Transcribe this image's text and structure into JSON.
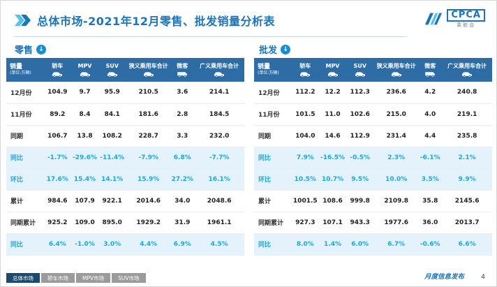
{
  "header": {
    "title_main": "总体市场",
    "title_rest": "-2021年12月零售、批发销量分析表"
  },
  "logo": {
    "brand": "CPCA",
    "name": "乘联会"
  },
  "icons": {
    "down_arrow": "↓"
  },
  "watermark": "乘联会",
  "tables": [
    {
      "section_label": "零售",
      "unit_label": "销量",
      "unit_sub": "(单位:万辆)",
      "columns": [
        {
          "label": "轿车",
          "icon": "car"
        },
        {
          "label": "MPV",
          "icon": "car"
        },
        {
          "label": "SUV",
          "icon": "car"
        },
        {
          "label": "狭义乘用车合计",
          "icon": "car"
        },
        {
          "label": "微客",
          "icon": "van"
        },
        {
          "label": "广义乘用车合计",
          "icon": "car"
        }
      ],
      "rows": [
        {
          "label": "12月份",
          "highlight": false,
          "values": [
            "104.9",
            "9.7",
            "95.9",
            "210.5",
            "3.6",
            "214.1"
          ]
        },
        {
          "label": "11月份",
          "highlight": false,
          "values": [
            "89.2",
            "8.4",
            "84.1",
            "181.6",
            "2.8",
            "184.5"
          ]
        },
        {
          "label": "同期",
          "highlight": false,
          "values": [
            "106.7",
            "13.8",
            "108.2",
            "228.7",
            "3.3",
            "232.0"
          ]
        },
        {
          "label": "同比",
          "highlight": true,
          "values": [
            "-1.7%",
            "-29.6%",
            "-11.4%",
            "-7.9%",
            "6.8%",
            "-7.7%"
          ]
        },
        {
          "label": "环比",
          "highlight": true,
          "values": [
            "17.6%",
            "15.4%",
            "14.1%",
            "15.9%",
            "27.2%",
            "16.1%"
          ]
        },
        {
          "label": "累计",
          "highlight": false,
          "values": [
            "984.6",
            "107.9",
            "922.1",
            "2014.6",
            "34.0",
            "2048.6"
          ]
        },
        {
          "label": "同期累计",
          "highlight": false,
          "values": [
            "925.2",
            "109.0",
            "895.0",
            "1929.2",
            "31.9",
            "1961.1"
          ]
        },
        {
          "label": "同比",
          "highlight": true,
          "values": [
            "6.4%",
            "-1.0%",
            "3.0%",
            "4.4%",
            "6.9%",
            "4.5%"
          ]
        }
      ]
    },
    {
      "section_label": "批发",
      "unit_label": "销量",
      "unit_sub": "(单位:万辆)",
      "columns": [
        {
          "label": "轿车",
          "icon": "car"
        },
        {
          "label": "MPV",
          "icon": "car"
        },
        {
          "label": "SUV",
          "icon": "car"
        },
        {
          "label": "狭义乘用车合计",
          "icon": "car"
        },
        {
          "label": "微客",
          "icon": "van"
        },
        {
          "label": "广义乘用车合计",
          "icon": "car"
        }
      ],
      "rows": [
        {
          "label": "12月份",
          "highlight": false,
          "values": [
            "112.2",
            "12.2",
            "112.3",
            "236.6",
            "4.2",
            "240.8"
          ]
        },
        {
          "label": "11月份",
          "highlight": false,
          "values": [
            "101.5",
            "11.0",
            "102.6",
            "215.0",
            "4.0",
            "219.1"
          ]
        },
        {
          "label": "同期",
          "highlight": false,
          "values": [
            "104.0",
            "14.6",
            "112.9",
            "231.4",
            "4.4",
            "235.8"
          ]
        },
        {
          "label": "同比",
          "highlight": true,
          "values": [
            "7.9%",
            "-16.5%",
            "-0.5%",
            "2.3%",
            "-6.1%",
            "2.1%"
          ]
        },
        {
          "label": "环比",
          "highlight": true,
          "values": [
            "10.5%",
            "10.7%",
            "9.5%",
            "10.0%",
            "3.5%",
            "9.9%"
          ]
        },
        {
          "label": "累计",
          "highlight": false,
          "values": [
            "1001.5",
            "108.6",
            "999.8",
            "2109.8",
            "35.8",
            "2145.6"
          ]
        },
        {
          "label": "同期累计",
          "highlight": false,
          "values": [
            "927.3",
            "107.1",
            "943.3",
            "1977.6",
            "36.0",
            "2013.7"
          ]
        },
        {
          "label": "同比",
          "highlight": true,
          "values": [
            "8.0%",
            "1.4%",
            "6.0%",
            "6.7%",
            "-0.6%",
            "6.6%"
          ]
        }
      ]
    }
  ],
  "footer": {
    "tabs": [
      {
        "label": "总体市场",
        "active": true
      },
      {
        "label": "轿车市场",
        "active": false
      },
      {
        "label": "MPV市场",
        "active": false
      },
      {
        "label": "SUV市场",
        "active": false
      }
    ],
    "note": "月度信息发布",
    "page": "4"
  }
}
